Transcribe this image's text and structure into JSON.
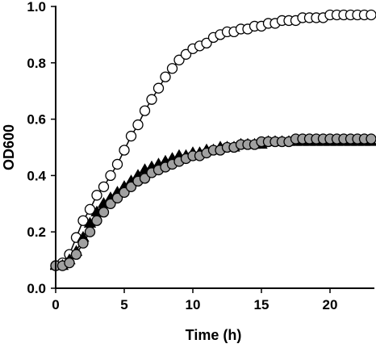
{
  "chart_data": {
    "type": "scatter",
    "xlabel": "Time (h)",
    "ylabel": "OD600",
    "xlim": [
      0,
      23
    ],
    "ylim": [
      0,
      1.0
    ],
    "x_ticks": [
      "0",
      "5",
      "10",
      "15",
      "20"
    ],
    "y_ticks": [
      "0.0",
      "0.2",
      "0.4",
      "0.6",
      "0.8",
      "1.0"
    ],
    "grid": false,
    "legend": "none",
    "series": [
      {
        "marker": "circle",
        "fill": "#ffffff",
        "stroke": "#000000",
        "x": [
          0,
          0.5,
          1,
          1.5,
          2,
          2.5,
          3,
          3.5,
          4,
          4.5,
          5,
          5.5,
          6,
          6.5,
          7,
          7.5,
          8,
          8.5,
          9,
          9.5,
          10,
          10.5,
          11,
          11.5,
          12,
          12.5,
          13,
          13.5,
          14,
          14.5,
          15,
          15.5,
          16,
          16.5,
          17,
          17.5,
          18,
          18.5,
          19,
          19.5,
          20,
          20.5,
          21,
          21.5,
          22,
          22.5,
          23
        ],
        "y": [
          0.08,
          0.09,
          0.12,
          0.18,
          0.24,
          0.28,
          0.33,
          0.36,
          0.4,
          0.44,
          0.49,
          0.54,
          0.58,
          0.63,
          0.67,
          0.71,
          0.75,
          0.78,
          0.81,
          0.83,
          0.85,
          0.86,
          0.87,
          0.89,
          0.9,
          0.91,
          0.91,
          0.92,
          0.92,
          0.93,
          0.93,
          0.94,
          0.94,
          0.95,
          0.95,
          0.95,
          0.96,
          0.96,
          0.96,
          0.96,
          0.97,
          0.97,
          0.97,
          0.97,
          0.97,
          0.97,
          0.97
        ]
      },
      {
        "marker": "triangle",
        "fill": "#000000",
        "stroke": "#000000",
        "x": [
          0,
          0.5,
          1,
          1.5,
          2,
          2.5,
          3,
          3.5,
          4,
          4.5,
          5,
          5.5,
          6,
          6.5,
          7,
          7.5,
          8,
          8.5,
          9,
          9.5,
          10,
          10.5,
          11,
          11.5,
          12,
          12.5,
          13,
          13.5,
          14,
          14.5,
          15,
          15.5,
          16,
          16.5,
          17,
          17.5,
          18,
          18.5,
          19,
          19.5,
          20,
          20.5,
          21,
          21.5,
          22,
          22.5,
          23
        ],
        "y": [
          0.08,
          0.08,
          0.1,
          0.13,
          0.18,
          0.23,
          0.27,
          0.3,
          0.32,
          0.34,
          0.36,
          0.38,
          0.4,
          0.42,
          0.43,
          0.44,
          0.45,
          0.46,
          0.47,
          0.47,
          0.48,
          0.48,
          0.49,
          0.49,
          0.5,
          0.5,
          0.5,
          0.51,
          0.51,
          0.51,
          0.51,
          0.52,
          0.52,
          0.52,
          0.52,
          0.52,
          0.52,
          0.52,
          0.52,
          0.52,
          0.52,
          0.52,
          0.52,
          0.52,
          0.52,
          0.52,
          0.52
        ]
      },
      {
        "marker": "circle",
        "fill": "#a0a0a0",
        "stroke": "#000000",
        "x": [
          0,
          0.5,
          1,
          1.5,
          2,
          2.5,
          3,
          3.5,
          4,
          4.5,
          5,
          5.5,
          6,
          6.5,
          7,
          7.5,
          8,
          8.5,
          9,
          9.5,
          10,
          10.5,
          11,
          11.5,
          12,
          12.5,
          13,
          13.5,
          14,
          14.5,
          15,
          15.5,
          16,
          16.5,
          17,
          17.5,
          18,
          18.5,
          19,
          19.5,
          20,
          20.5,
          21,
          21.5,
          22,
          22.5,
          23
        ],
        "y": [
          0.08,
          0.08,
          0.09,
          0.12,
          0.16,
          0.2,
          0.24,
          0.27,
          0.3,
          0.32,
          0.34,
          0.36,
          0.38,
          0.39,
          0.41,
          0.42,
          0.43,
          0.44,
          0.45,
          0.46,
          0.47,
          0.47,
          0.48,
          0.49,
          0.49,
          0.5,
          0.5,
          0.51,
          0.51,
          0.51,
          0.52,
          0.52,
          0.52,
          0.52,
          0.52,
          0.53,
          0.53,
          0.53,
          0.53,
          0.53,
          0.53,
          0.53,
          0.53,
          0.53,
          0.53,
          0.53,
          0.53
        ]
      }
    ]
  }
}
